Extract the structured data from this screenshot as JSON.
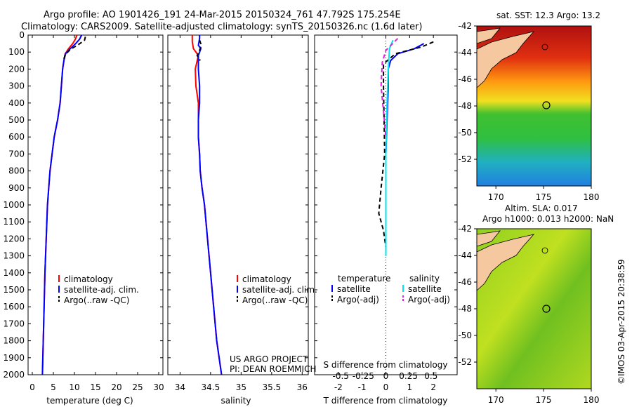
{
  "header": {
    "line1": "Argo profile: AO 1901426_191 24-Mar-2015 20150324_761 47.792S 175.254E",
    "line2": "Climatology: CARS2009. Satellite-adjusted climatology: synTS_20150326.nc (1.6d later)"
  },
  "credits": {
    "project": "US ARGO PROJECT",
    "pi": "PI: DEAN ROEMMICH",
    "stamp": "©IMOS 03-Apr-2015 20:38:59"
  },
  "colors": {
    "climatology": "#ff0000",
    "satellite": "#0000ff",
    "argo": "#000000",
    "s_satellite": "#00e5ee",
    "s_argo": "#e020e0"
  },
  "chart_data": [
    {
      "id": "temperature",
      "type": "line",
      "xlabel": "temperature (deg C)",
      "ylabel": "",
      "xlim": [
        -1,
        31
      ],
      "ylim": [
        2000,
        0
      ],
      "xticks": [
        0,
        5,
        10,
        15,
        20,
        25,
        30
      ],
      "yticks": [
        0,
        100,
        200,
        300,
        400,
        500,
        600,
        700,
        800,
        900,
        1000,
        1100,
        1200,
        1300,
        1400,
        1500,
        1600,
        1700,
        1800,
        1900,
        2000
      ],
      "legend": [
        "climatology",
        "satellite-adj. clim.",
        "Argo(..raw -QC)"
      ],
      "series": [
        {
          "name": "climatology",
          "color": "#ff0000",
          "dash": "",
          "points": [
            [
              10.6,
              0
            ],
            [
              10.2,
              25
            ],
            [
              9.6,
              50
            ],
            [
              8.6,
              80
            ],
            [
              7.8,
              110
            ],
            [
              7.5,
              150
            ],
            [
              7.2,
              200
            ],
            [
              6.9,
              300
            ],
            [
              6.6,
              400
            ],
            [
              6.0,
              500
            ],
            [
              5.2,
              600
            ],
            [
              4.7,
              700
            ],
            [
              4.2,
              800
            ],
            [
              3.9,
              900
            ],
            [
              3.6,
              1000
            ],
            [
              3.3,
              1200
            ],
            [
              3.0,
              1400
            ],
            [
              2.8,
              1600
            ],
            [
              2.6,
              1800
            ],
            [
              2.4,
              2000
            ]
          ]
        },
        {
          "name": "satellite-adj. clim.",
          "color": "#0000ff",
          "dash": "",
          "points": [
            [
              11.7,
              0
            ],
            [
              11.2,
              25
            ],
            [
              10.3,
              50
            ],
            [
              9.0,
              80
            ],
            [
              7.9,
              110
            ],
            [
              7.5,
              150
            ],
            [
              7.2,
              200
            ],
            [
              6.9,
              300
            ],
            [
              6.6,
              400
            ],
            [
              6.0,
              500
            ],
            [
              5.2,
              600
            ],
            [
              4.7,
              700
            ],
            [
              4.2,
              800
            ],
            [
              3.9,
              900
            ],
            [
              3.6,
              1000
            ],
            [
              3.3,
              1200
            ],
            [
              3.0,
              1400
            ],
            [
              2.8,
              1600
            ],
            [
              2.6,
              1800
            ],
            [
              2.4,
              2000
            ]
          ]
        },
        {
          "name": "Argo(..raw -QC)",
          "color": "#000000",
          "dash": "6 4",
          "points": [
            [
              12.6,
              10
            ],
            [
              12.4,
              30
            ],
            [
              11.0,
              55
            ],
            [
              9.0,
              85
            ],
            [
              7.8,
              115
            ],
            [
              7.4,
              150
            ]
          ]
        }
      ]
    },
    {
      "id": "salinity",
      "type": "line",
      "xlabel": "salinity",
      "ylabel": "",
      "xlim": [
        33.8,
        36.1
      ],
      "ylim": [
        2000,
        0
      ],
      "xticks": [
        34,
        34.5,
        35,
        35.5,
        36
      ],
      "legend": [
        "climatology",
        "satellite-adj. clim.",
        "Argo(..raw -QC)"
      ],
      "series": [
        {
          "name": "climatology",
          "color": "#ff0000",
          "dash": "",
          "points": [
            [
              34.2,
              0
            ],
            [
              34.2,
              40
            ],
            [
              34.22,
              80
            ],
            [
              34.3,
              120
            ],
            [
              34.25,
              200
            ],
            [
              34.26,
              300
            ],
            [
              34.3,
              400
            ],
            [
              34.3,
              500
            ],
            [
              34.3,
              600
            ],
            [
              34.32,
              700
            ],
            [
              34.33,
              800
            ],
            [
              34.36,
              900
            ],
            [
              34.4,
              1000
            ],
            [
              34.45,
              1200
            ],
            [
              34.5,
              1400
            ],
            [
              34.55,
              1600
            ],
            [
              34.6,
              1800
            ],
            [
              34.68,
              2000
            ]
          ]
        },
        {
          "name": "satellite-adj. clim.",
          "color": "#0000ff",
          "dash": "",
          "points": [
            [
              34.32,
              0
            ],
            [
              34.32,
              20
            ],
            [
              34.3,
              60
            ],
            [
              34.34,
              80
            ],
            [
              34.3,
              120
            ],
            [
              34.3,
              200
            ],
            [
              34.32,
              300
            ],
            [
              34.32,
              400
            ],
            [
              34.3,
              500
            ],
            [
              34.3,
              600
            ],
            [
              34.32,
              700
            ],
            [
              34.33,
              800
            ],
            [
              34.36,
              900
            ],
            [
              34.4,
              1000
            ],
            [
              34.45,
              1200
            ],
            [
              34.5,
              1400
            ],
            [
              34.55,
              1600
            ],
            [
              34.6,
              1800
            ],
            [
              34.68,
              2000
            ]
          ]
        },
        {
          "name": "Argo(..raw -QC)",
          "color": "#000000",
          "dash": "6 4",
          "points": [
            [
              34.32,
              30
            ],
            [
              34.35,
              60
            ],
            [
              34.33,
              80
            ],
            [
              34.28,
              120
            ],
            [
              34.33,
              150
            ]
          ]
        }
      ]
    },
    {
      "id": "difference",
      "type": "line",
      "xlabel": "T difference from climatology",
      "top_xlabel": "S difference from climatology",
      "xlim": [
        -3,
        3
      ],
      "ylim": [
        2000,
        0
      ],
      "xticks": [
        -2,
        -1,
        0,
        1,
        2
      ],
      "s_ticks": [
        "-0.5",
        "-0.25",
        "0",
        "0.25",
        "0.5"
      ],
      "legend_titles": [
        "temperature",
        "salinity"
      ],
      "legend": [
        "satellite",
        "Argo(-adj)",
        "satellite",
        "Argo(-adj)"
      ],
      "series": [
        {
          "name": "satellite",
          "color": "#0000ff",
          "dash": "",
          "points": [
            [
              1.6,
              50
            ],
            [
              1.2,
              80
            ],
            [
              0.5,
              110
            ],
            [
              0.2,
              150
            ],
            [
              0.1,
              200
            ],
            [
              0.1,
              300
            ],
            [
              0.05,
              500
            ],
            [
              0.0,
              700
            ],
            [
              0.0,
              1000
            ],
            [
              0.0,
              1300
            ]
          ]
        },
        {
          "name": "Argo(-adj)",
          "color": "#000000",
          "dash": "6 4",
          "points": [
            [
              2.0,
              40
            ],
            [
              1.5,
              70
            ],
            [
              0.4,
              110
            ],
            [
              -0.1,
              170
            ],
            [
              -0.1,
              300
            ],
            [
              -0.05,
              700
            ],
            [
              -0.2,
              900
            ],
            [
              -0.3,
              1050
            ],
            [
              -0.1,
              1150
            ],
            [
              0.0,
              1250
            ]
          ]
        },
        {
          "name": "satellite",
          "color": "#00e5ee",
          "dash": "",
          "points": [
            [
              0.3,
              30
            ],
            [
              0.15,
              80
            ],
            [
              0.1,
              200
            ],
            [
              0.05,
              400
            ],
            [
              0.0,
              700
            ],
            [
              0.0,
              1000
            ],
            [
              0.0,
              1300
            ]
          ]
        },
        {
          "name": "Argo(-adj)",
          "color": "#e020e0",
          "dash": "6 4",
          "points": [
            [
              0.5,
              20
            ],
            [
              0.0,
              90
            ],
            [
              -0.15,
              160
            ],
            [
              -0.2,
              300
            ],
            [
              -0.1,
              450
            ],
            [
              0.0,
              600
            ]
          ]
        }
      ]
    },
    {
      "id": "sst-map",
      "type": "heatmap",
      "title": "sat. SST: 12.3 Argo: 13.2",
      "xlim": [
        168,
        180
      ],
      "ylim": [
        -54,
        -42
      ],
      "xticks": [
        170,
        175,
        180
      ],
      "yticks": [
        -42,
        -44,
        -46,
        -48,
        -50,
        -52
      ]
    },
    {
      "id": "sla-map",
      "type": "heatmap",
      "title": "Altim. SLA: 0.017",
      "subtitle": "Argo h1000: 0.013 h2000: NaN",
      "xlim": [
        168,
        180
      ],
      "ylim": [
        -54,
        -42
      ],
      "xticks": [
        170,
        175,
        180
      ],
      "yticks": [
        -42,
        -44,
        -46,
        -48,
        -50,
        -52
      ]
    }
  ]
}
